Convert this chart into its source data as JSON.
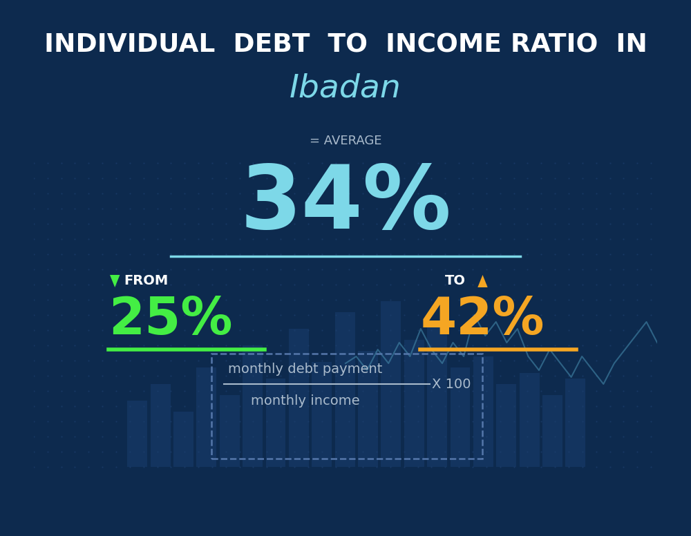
{
  "title_line1": "INDIVIDUAL  DEBT  TO  INCOME RATIO  IN",
  "title_line2": "Ibadan",
  "avg_label": "= AVERAGE",
  "avg_value": "34%",
  "from_label": "FROM",
  "from_value": "25%",
  "to_label": "TO",
  "to_value": "42%",
  "formula_numerator": "monthly debt payment",
  "formula_denominator": "monthly income",
  "formula_multiplier": "X 100",
  "bg_color": "#0d2a4e",
  "title1_color": "#ffffff",
  "title2_color": "#7dd8e8",
  "avg_label_color": "#aabbcc",
  "avg_value_color": "#7dd8e8",
  "from_label_color": "#ffffff",
  "from_value_color": "#44ee44",
  "from_underline_color": "#44ee44",
  "to_label_color": "#ffffff",
  "to_value_color": "#f5a623",
  "to_underline_color": "#f5a623",
  "avg_underline_color": "#7dd8e8",
  "formula_color": "#aabbcc",
  "down_arrow_color": "#44ee44",
  "up_arrow_color": "#f5a623",
  "avg_icon_color": "#7dd8e8",
  "bar_heights": [
    1.2,
    1.5,
    1.0,
    1.8,
    1.3,
    2.2,
    1.6,
    2.5,
    1.9,
    2.8,
    2.1,
    3.0,
    2.3,
    2.6,
    1.8,
    2.0,
    1.5,
    1.7,
    1.3,
    1.6
  ],
  "line_y": [
    2.5,
    2.6,
    2.4,
    2.7,
    2.5,
    2.8,
    2.6,
    3.0,
    2.7,
    2.5,
    2.8,
    2.6,
    3.2,
    2.9,
    3.1,
    2.8,
    3.0,
    2.6,
    2.4,
    2.7,
    2.5,
    2.3,
    2.6,
    2.4,
    2.2,
    2.5,
    2.7,
    2.9,
    3.1,
    2.8
  ]
}
